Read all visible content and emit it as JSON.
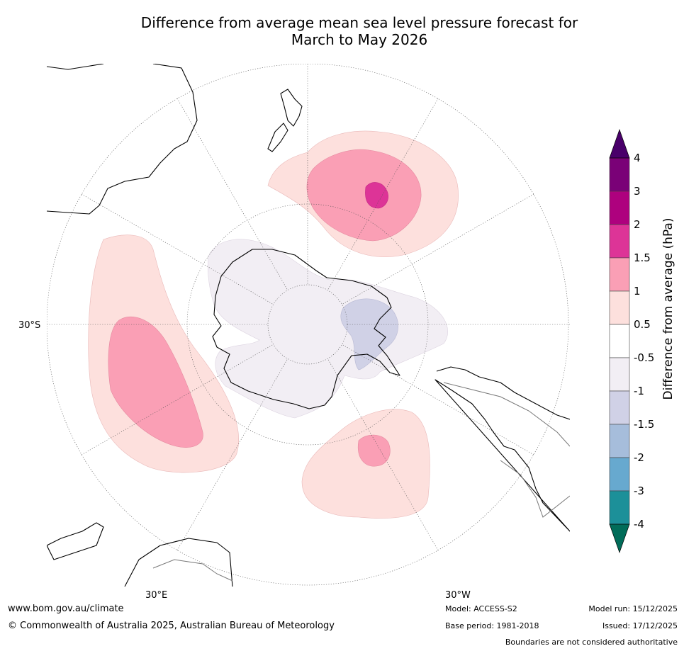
{
  "header": {
    "title_line1": "Difference from average mean sea level pressure forecast for",
    "title_line2": "March to May 2026"
  },
  "map": {
    "lat_label": "30°S",
    "lon_label_east": "30°E",
    "lon_label_west": "30°W",
    "projection": "South polar stereographic"
  },
  "colorbar": {
    "label": "Difference from average (hPa)",
    "ticks": [
      "4",
      "3",
      "2",
      "1.5",
      "1",
      "0.5",
      "-0.5",
      "-1",
      "-1.5",
      "-2",
      "-3",
      "-4"
    ],
    "bands_top_to_bottom": [
      "#7a0177",
      "#ae017e",
      "#dd3497",
      "#fa9fb5",
      "#fde0dd",
      "#ffffff",
      "#f2eef4",
      "#d0d1e6",
      "#a6bddb",
      "#67a9cf",
      "#1c9099"
    ],
    "over_color": "#49006a",
    "under_color": "#016c59"
  },
  "footer": {
    "website": "www.bom.gov.au/climate",
    "copyright": "© Commonwealth of Australia 2025, Australian Bureau of Meteorology",
    "model": "Model: ACCESS-S2",
    "base_period": "Base period: 1981-2018",
    "model_run": "Model run: 15/12/2025",
    "issued": "Issued: 17/12/2025",
    "disclaimer": "Boundaries are not considered authoritative"
  }
}
